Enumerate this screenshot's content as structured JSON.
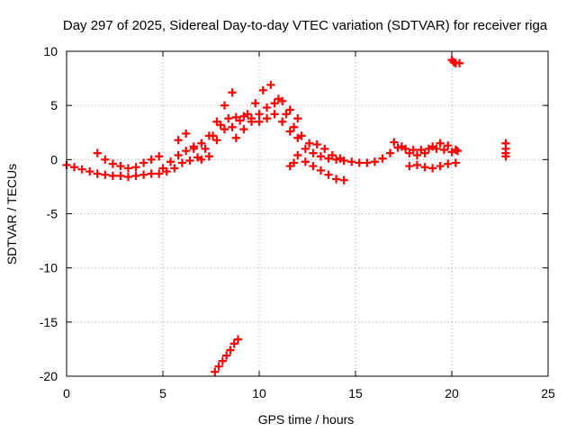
{
  "chart_data": {
    "type": "scatter",
    "title": "Day 297 of 2025, Sidereal Day-to-day VTEC variation (SDTVAR) for receiver riga",
    "xlabel": "GPS time / hours",
    "ylabel": "SDTVAR / TECUs",
    "xlim": [
      0,
      25
    ],
    "ylim": [
      -20,
      10
    ],
    "xticks": [
      "0",
      "5",
      "10",
      "15",
      "20",
      "25"
    ],
    "yticks": [
      "-20",
      "-15",
      "-10",
      "-5",
      "0",
      "5",
      "10"
    ],
    "grid": true,
    "marker": "plus",
    "color": "#ff0000",
    "series": [
      {
        "name": "SDTVAR",
        "x": [
          0.0,
          0.4,
          0.8,
          1.2,
          1.6,
          2.0,
          2.4,
          2.8,
          3.2,
          3.6,
          4.0,
          4.4,
          4.8,
          5.2,
          5.6,
          6.0,
          6.4,
          6.8,
          7.2,
          7.6,
          8.0,
          8.4,
          8.8,
          9.2,
          9.6,
          10.0,
          10.4,
          10.8,
          11.2,
          11.6,
          12.0,
          12.4,
          12.8,
          13.2,
          13.6,
          14.0,
          14.4,
          14.8,
          15.2,
          15.6,
          16.0,
          16.4,
          16.8,
          17.2,
          17.6,
          18.0,
          18.4,
          18.8,
          19.2,
          19.6,
          20.0,
          20.3,
          1.6,
          2.0,
          2.4,
          2.8,
          3.2,
          3.6,
          4.0,
          4.4,
          4.8,
          5.0,
          5.4,
          5.8,
          6.2,
          6.6,
          7.0,
          7.4,
          7.8,
          8.2,
          8.6,
          5.8,
          6.2,
          6.6,
          7.0,
          7.4,
          7.8,
          8.2,
          8.6,
          9.0,
          9.4,
          9.8,
          10.2,
          10.6,
          11.0,
          11.4,
          11.8,
          12.2,
          12.6,
          13.0,
          13.4,
          13.8,
          14.2,
          11.6,
          11.8,
          12.0,
          12.4,
          12.8,
          13.2,
          13.6,
          14.0,
          14.4,
          8.8,
          9.2,
          9.6,
          10.0,
          10.4,
          10.8,
          11.2,
          11.6,
          12.0,
          17.0,
          17.4,
          17.8,
          18.2,
          18.6,
          19.0,
          19.4,
          19.8,
          20.2,
          17.8,
          18.2,
          18.6,
          19.0,
          19.4,
          19.8,
          20.2,
          7.7,
          7.9,
          8.1,
          8.3,
          8.5,
          8.7,
          8.9,
          20.0,
          20.1,
          20.2,
          20.4,
          22.8,
          22.8,
          22.8,
          22.8
        ],
        "y": [
          -0.5,
          -0.7,
          -0.9,
          -1.1,
          -1.3,
          -1.4,
          -1.5,
          -1.5,
          -1.6,
          -1.5,
          -1.4,
          -1.3,
          -1.3,
          -1.1,
          -0.8,
          -0.3,
          -0.1,
          0.2,
          1.0,
          2.2,
          3.2,
          3.8,
          3.9,
          4.0,
          3.8,
          3.5,
          3.8,
          4.2,
          3.5,
          2.6,
          2.0,
          1.0,
          0.6,
          0.3,
          0.1,
          0.0,
          -0.1,
          -0.2,
          -0.3,
          -0.3,
          -0.2,
          0.1,
          0.6,
          1.1,
          1.0,
          0.9,
          0.9,
          1.0,
          1.0,
          0.9,
          0.7,
          0.8,
          0.6,
          0.0,
          -0.4,
          -0.6,
          -0.8,
          -0.7,
          -0.3,
          0.0,
          0.3,
          -0.8,
          -0.2,
          0.4,
          0.8,
          1.2,
          1.5,
          2.2,
          3.5,
          5.0,
          6.2,
          1.8,
          2.4,
          1.0,
          0.0,
          0.3,
          1.8,
          2.8,
          3.0,
          3.6,
          4.2,
          5.2,
          6.4,
          6.9,
          5.6,
          4.2,
          3.0,
          2.2,
          1.5,
          1.4,
          1.0,
          0.4,
          0.1,
          -0.6,
          -0.3,
          0.4,
          -0.2,
          -0.6,
          -1.0,
          -1.4,
          -1.8,
          -1.9,
          2.0,
          2.8,
          3.5,
          4.2,
          4.8,
          5.2,
          5.4,
          4.6,
          3.8,
          1.6,
          1.2,
          0.6,
          0.4,
          0.6,
          1.2,
          1.5,
          1.3,
          0.9,
          -0.6,
          -0.5,
          -0.7,
          -0.8,
          -0.6,
          -0.4,
          -0.3,
          -19.6,
          -19.1,
          -18.6,
          -18.1,
          -17.6,
          -17.0,
          -16.6,
          9.2,
          9.0,
          8.9,
          8.9,
          1.5,
          1.0,
          0.6,
          0.3
        ]
      }
    ]
  }
}
